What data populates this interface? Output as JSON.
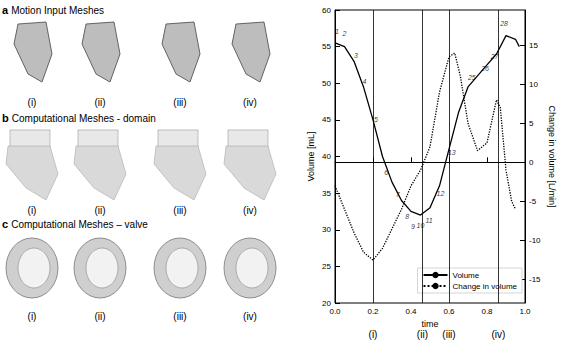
{
  "panels": [
    {
      "letter": "a",
      "title": "Motion Input Meshes",
      "labels": [
        "(i)",
        "(ii)",
        "(iii)",
        "(iv)"
      ]
    },
    {
      "letter": "b",
      "title": "Computational Meshes - domain",
      "labels": [
        "(i)",
        "(ii)",
        "(iii)",
        "(iv)"
      ]
    },
    {
      "letter": "c",
      "title": "Computational Meshes – valve",
      "labels": [
        "(i)",
        "(ii)",
        "(iii)",
        "(iv)"
      ]
    }
  ],
  "chart_data": {
    "type": "line",
    "x_label": "time",
    "y_label": "Volume [mL]",
    "y2_label": "Change in volume [L/min]",
    "xlim": [
      0,
      1.0
    ],
    "xticks": [
      {
        "value": 0,
        "label": "0.0"
      },
      {
        "value": 0.2,
        "label": "0.2"
      },
      {
        "value": 0.4,
        "label": "0.4"
      },
      {
        "value": 0.6,
        "label": "0.6"
      },
      {
        "value": 0.8,
        "label": "0.8"
      },
      {
        "value": 1.0,
        "label": "1.0"
      }
    ],
    "ylim": [
      20,
      60
    ],
    "yticks": [
      20,
      25,
      30,
      35,
      40,
      45,
      50,
      55,
      60
    ],
    "y2lim": [
      -18,
      19.5
    ],
    "y2ticks": [
      -15,
      -10,
      -5,
      0,
      5,
      10,
      15
    ],
    "y2_reference": 0,
    "legend": "lower right",
    "grid": false,
    "vlines": [
      {
        "x": 0.2,
        "label": "(i)"
      },
      {
        "x": 0.46,
        "label": "(ii)"
      },
      {
        "x": 0.6,
        "label": "(iii)"
      },
      {
        "x": 0.86,
        "label": "(iv)"
      }
    ],
    "series": [
      {
        "name": "Volume",
        "color": "#000000",
        "line_style": "solid",
        "x": [
          0,
          0.05,
          0.1,
          0.15,
          0.2,
          0.25,
          0.3,
          0.35,
          0.4,
          0.45,
          0.5,
          0.55,
          0.6,
          0.65,
          0.7,
          0.75,
          0.8,
          0.85,
          0.9,
          0.95,
          0.97
        ],
        "values": [
          55.5,
          55,
          53,
          49.5,
          45,
          40,
          36.5,
          34,
          32.5,
          32,
          33,
          36,
          41,
          46,
          49.5,
          51,
          52.5,
          54,
          56.5,
          56,
          55
        ]
      },
      {
        "name": "Change in volume",
        "color": "#000000",
        "line_style": "dotted",
        "axis": "y2",
        "x": [
          0,
          0.05,
          0.1,
          0.15,
          0.2,
          0.25,
          0.3,
          0.35,
          0.4,
          0.45,
          0.5,
          0.55,
          0.6,
          0.63,
          0.66,
          0.7,
          0.75,
          0.8,
          0.85,
          0.87,
          0.9,
          0.93,
          0.95
        ],
        "values": [
          -3,
          -6,
          -9,
          -11.5,
          -12.5,
          -11,
          -8.5,
          -6,
          -3,
          -1,
          2,
          9,
          13.5,
          14,
          11,
          5,
          1.5,
          2.5,
          8,
          7,
          -1,
          -5,
          -6
        ]
      }
    ],
    "annotations": [
      {
        "x": 0.01,
        "y": 57,
        "text": "1"
      },
      {
        "x": 0.05,
        "y": 56.8,
        "text": "2"
      },
      {
        "x": 0.11,
        "y": 53.8,
        "text": "3"
      },
      {
        "x": 0.155,
        "y": 50.2,
        "text": "4"
      },
      {
        "x": 0.215,
        "y": 45,
        "text": "5"
      },
      {
        "x": 0.27,
        "y": 37.8,
        "text": "6"
      },
      {
        "x": 0.33,
        "y": 34.8,
        "text": "7"
      },
      {
        "x": 0.38,
        "y": 31.8,
        "text": "8"
      },
      {
        "x": 0.41,
        "y": 30.4,
        "text": "9"
      },
      {
        "x": 0.45,
        "y": 30.6,
        "text": "10"
      },
      {
        "x": 0.495,
        "y": 31.2,
        "text": "11"
      },
      {
        "x": 0.555,
        "y": 35,
        "text": "12"
      },
      {
        "x": 0.615,
        "y": 40.5,
        "text": "13"
      },
      {
        "x": 0.72,
        "y": 50.8,
        "text": "25"
      },
      {
        "x": 0.79,
        "y": 52,
        "text": "26"
      },
      {
        "x": 0.84,
        "y": 53.6,
        "text": "27"
      },
      {
        "x": 0.89,
        "y": 58.2,
        "text": "28"
      }
    ]
  }
}
